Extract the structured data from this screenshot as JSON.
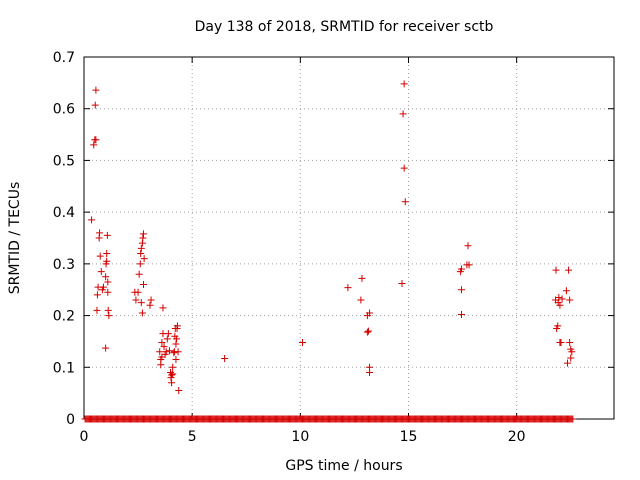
{
  "chart_data": {
    "type": "scatter",
    "title": "Day 138 of 2018, SRMTID for receiver sctb",
    "xlabel": "GPS time / hours",
    "ylabel": "SRMTID / TECUs",
    "xlim": [
      0,
      24.5
    ],
    "ylim": [
      0,
      0.7
    ],
    "xticks": [
      0,
      5,
      10,
      15,
      20
    ],
    "xtick_labels": [
      "0",
      "5",
      "10",
      "15",
      "20"
    ],
    "yticks": [
      0,
      0.1,
      0.2,
      0.3,
      0.4,
      0.5,
      0.6,
      0.7
    ],
    "ytick_labels": [
      "0",
      "0.1",
      "0.2",
      "0.3",
      "0.4",
      "0.5",
      "0.6",
      "0.7"
    ],
    "grid": true,
    "marker": "plus",
    "color": "#d40000",
    "points": [
      [
        0.35,
        0.385
      ],
      [
        0.45,
        0.53
      ],
      [
        0.5,
        0.54
      ],
      [
        0.55,
        0.54
      ],
      [
        0.52,
        0.607
      ],
      [
        0.55,
        0.636
      ],
      [
        0.6,
        0.21
      ],
      [
        0.62,
        0.24
      ],
      [
        0.65,
        0.255
      ],
      [
        0.7,
        0.35
      ],
      [
        0.72,
        0.36
      ],
      [
        0.75,
        0.315
      ],
      [
        0.8,
        0.285
      ],
      [
        0.85,
        0.25
      ],
      [
        0.9,
        0.255
      ],
      [
        1.0,
        0.275
      ],
      [
        1.02,
        0.3
      ],
      [
        1.05,
        0.305
      ],
      [
        1.05,
        0.32
      ],
      [
        1.08,
        0.355
      ],
      [
        1.1,
        0.265
      ],
      [
        1.1,
        0.245
      ],
      [
        1.12,
        0.21
      ],
      [
        1.15,
        0.2
      ],
      [
        1.0,
        0.137
      ],
      [
        2.35,
        0.245
      ],
      [
        2.4,
        0.23
      ],
      [
        2.5,
        0.245
      ],
      [
        2.55,
        0.28
      ],
      [
        2.6,
        0.3
      ],
      [
        2.62,
        0.32
      ],
      [
        2.65,
        0.33
      ],
      [
        2.7,
        0.34
      ],
      [
        2.72,
        0.35
      ],
      [
        2.75,
        0.358
      ],
      [
        2.78,
        0.31
      ],
      [
        2.65,
        0.225
      ],
      [
        2.7,
        0.205
      ],
      [
        2.75,
        0.26
      ],
      [
        3.05,
        0.22
      ],
      [
        3.1,
        0.23
      ],
      [
        3.5,
        0.13
      ],
      [
        3.55,
        0.115
      ],
      [
        3.55,
        0.105
      ],
      [
        3.6,
        0.12
      ],
      [
        3.6,
        0.148
      ],
      [
        3.65,
        0.165
      ],
      [
        3.7,
        0.14
      ],
      [
        3.65,
        0.215
      ],
      [
        3.75,
        0.125
      ],
      [
        3.8,
        0.13
      ],
      [
        3.85,
        0.155
      ],
      [
        3.9,
        0.165
      ],
      [
        3.95,
        0.132
      ],
      [
        4.0,
        0.09
      ],
      [
        4.02,
        0.08
      ],
      [
        4.05,
        0.085
      ],
      [
        4.05,
        0.07
      ],
      [
        4.1,
        0.087
      ],
      [
        4.1,
        0.1
      ],
      [
        4.15,
        0.128
      ],
      [
        4.18,
        0.13
      ],
      [
        4.2,
        0.16
      ],
      [
        4.22,
        0.175
      ],
      [
        4.25,
        0.115
      ],
      [
        4.25,
        0.145
      ],
      [
        4.28,
        0.155
      ],
      [
        4.3,
        0.175
      ],
      [
        4.32,
        0.18
      ],
      [
        4.35,
        0.13
      ],
      [
        4.38,
        0.055
      ],
      [
        6.5,
        0.117
      ],
      [
        10.1,
        0.148
      ],
      [
        12.2,
        0.254
      ],
      [
        12.8,
        0.23
      ],
      [
        12.85,
        0.272
      ],
      [
        13.1,
        0.168
      ],
      [
        13.1,
        0.2
      ],
      [
        13.15,
        0.17
      ],
      [
        13.2,
        0.205
      ],
      [
        13.2,
        0.1
      ],
      [
        13.2,
        0.09
      ],
      [
        14.7,
        0.262
      ],
      [
        14.75,
        0.59
      ],
      [
        14.8,
        0.648
      ],
      [
        14.8,
        0.485
      ],
      [
        14.85,
        0.42
      ],
      [
        17.4,
        0.285
      ],
      [
        17.45,
        0.29
      ],
      [
        17.45,
        0.25
      ],
      [
        17.45,
        0.202
      ],
      [
        17.7,
        0.298
      ],
      [
        17.75,
        0.335
      ],
      [
        17.8,
        0.298
      ],
      [
        21.8,
        0.23
      ],
      [
        21.82,
        0.288
      ],
      [
        21.85,
        0.175
      ],
      [
        21.9,
        0.18
      ],
      [
        21.92,
        0.225
      ],
      [
        21.95,
        0.235
      ],
      [
        22.0,
        0.148
      ],
      [
        22.05,
        0.148
      ],
      [
        22.0,
        0.22
      ],
      [
        22.1,
        0.232
      ],
      [
        22.3,
        0.248
      ],
      [
        22.35,
        0.108
      ],
      [
        22.4,
        0.288
      ],
      [
        22.45,
        0.148
      ],
      [
        22.5,
        0.118
      ],
      [
        22.5,
        0.135
      ],
      [
        22.55,
        0.13
      ],
      [
        22.45,
        0.23
      ]
    ],
    "zero_baseline": {
      "y": 0,
      "x_start": 0.05,
      "x_end": 22.6,
      "step": 0.05
    }
  }
}
